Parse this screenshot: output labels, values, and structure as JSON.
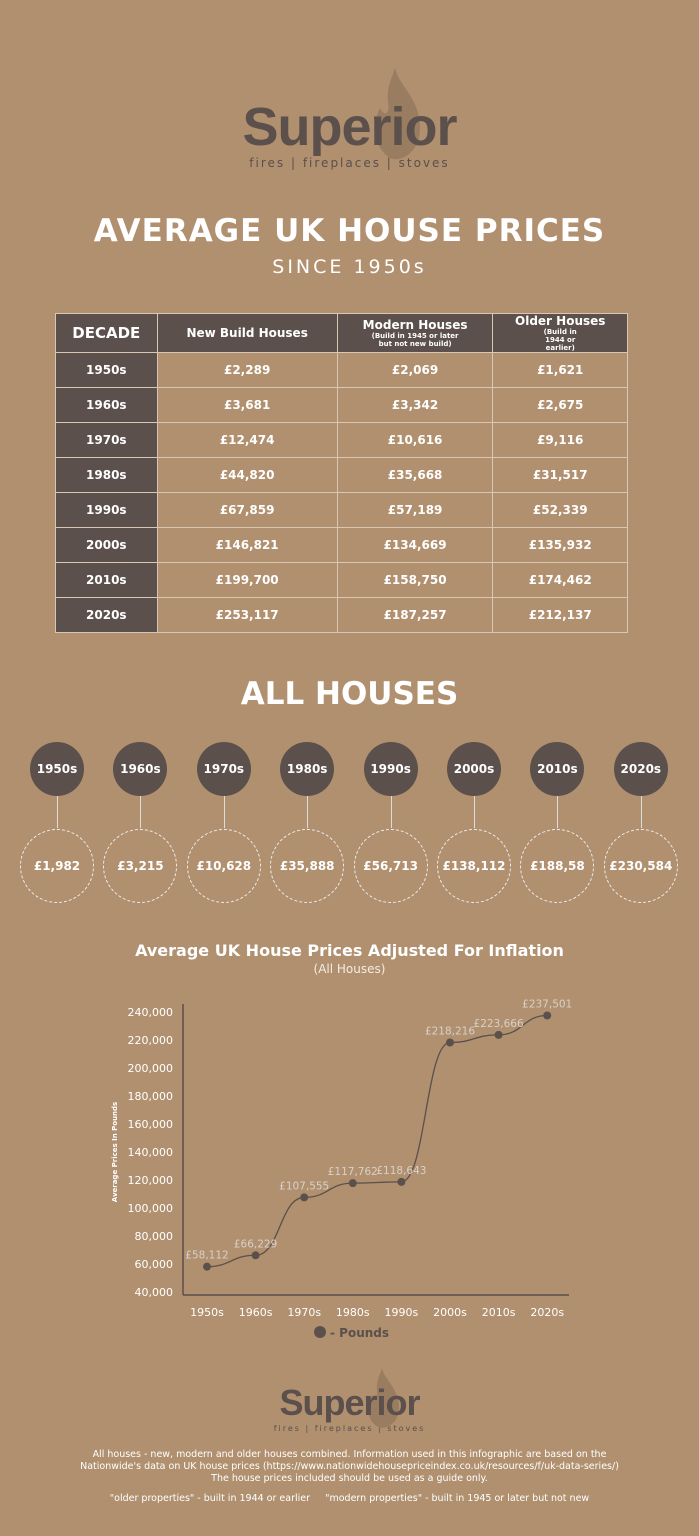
{
  "brand": {
    "name": "Superior",
    "tagline": "fires | fireplaces | stoves"
  },
  "header": {
    "title": "AVERAGE UK HOUSE PRICES",
    "subtitle": "SINCE 1950s"
  },
  "table": {
    "headers": [
      {
        "label": "DECADE",
        "note": ""
      },
      {
        "label": "New Build Houses",
        "note": ""
      },
      {
        "label": "Modern Houses",
        "note": "(Build in 1945 or later but not new build)"
      },
      {
        "label": "Older Houses",
        "note": "(Build in 1944 or earlier)"
      }
    ],
    "rows": [
      [
        "1950s",
        "£2,289",
        "£2,069",
        "£1,621"
      ],
      [
        "1960s",
        "£3,681",
        "£3,342",
        "£2,675"
      ],
      [
        "1970s",
        "£12,474",
        "£10,616",
        "£9,116"
      ],
      [
        "1980s",
        "£44,820",
        "£35,668",
        "£31,517"
      ],
      [
        "1990s",
        "£67,859",
        "£57,189",
        "£52,339"
      ],
      [
        "2000s",
        "£146,821",
        "£134,669",
        "£135,932"
      ],
      [
        "2010s",
        "£199,700",
        "£158,750",
        "£174,462"
      ],
      [
        "2020s",
        "£253,117",
        "£187,257",
        "£212,137"
      ]
    ]
  },
  "all_houses": {
    "title": "ALL HOUSES",
    "items": [
      {
        "decade": "1950s",
        "price": "£1,982"
      },
      {
        "decade": "1960s",
        "price": "£3,215"
      },
      {
        "decade": "1970s",
        "price": "£10,628"
      },
      {
        "decade": "1980s",
        "price": "£35,888"
      },
      {
        "decade": "1990s",
        "price": "£56,713"
      },
      {
        "decade": "2000s",
        "price": "£138,112"
      },
      {
        "decade": "2010s",
        "price": "£188,58"
      },
      {
        "decade": "2020s",
        "price": "£230,584"
      }
    ]
  },
  "chart_data": {
    "type": "line",
    "title": "Average UK House Prices Adjusted For Inflation",
    "subtitle": "(All Houses)",
    "ylabel": "Average Prices In Pounds",
    "xlabel": "",
    "categories": [
      "1950s",
      "1960s",
      "1970s",
      "1980s",
      "1990s",
      "2000s",
      "2010s",
      "2020s"
    ],
    "series": [
      {
        "name": "- Pounds",
        "values": [
          58112,
          66229,
          107555,
          117762,
          118643,
          218216,
          223666,
          237501
        ],
        "labels": [
          "£58,112",
          "£66,229",
          "£107,555",
          "£117,762",
          "£118,643",
          "£218,216",
          "£223,666",
          "£237,501"
        ]
      }
    ],
    "ylim": [
      40000,
      240000
    ],
    "yticks": [
      "40,000",
      "60,000",
      "80,000",
      "100,000",
      "120,000",
      "140,000",
      "160,000",
      "180,000",
      "200,000",
      "220,000",
      "240,000"
    ],
    "grid": false,
    "legend": "bottom",
    "colors": {
      "line": "#5b504b",
      "labels": "#d9d0c8"
    }
  },
  "footer": {
    "lines": [
      "All houses - new, modern and older houses combined. Information used in this infographic are based on the",
      "Nationwide's data on UK house prices (https://www.nationwidehousepriceindex.co.uk/resources/f/uk-data-series/)",
      "The house prices included should be used as a guide only."
    ],
    "defs": "\"older properties\" - built in 1944 or earlier     \"modern properties\" - built in 1945 or later but not new"
  }
}
